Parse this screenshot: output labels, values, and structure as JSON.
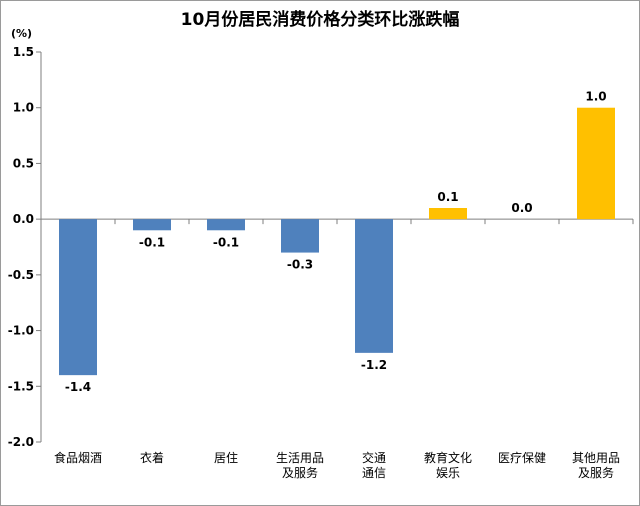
{
  "chart_data": {
    "type": "bar",
    "title": "10月份居民消费价格分类环比涨跌幅",
    "unit_label": "(%)",
    "categories": [
      [
        "食品烟酒"
      ],
      [
        "衣着"
      ],
      [
        "居住"
      ],
      [
        "生活用品",
        "及服务"
      ],
      [
        "交通",
        "通信"
      ],
      [
        "教育文化",
        "娱乐"
      ],
      [
        "医疗保健"
      ],
      [
        "其他用品",
        "及服务"
      ]
    ],
    "values": [
      -1.4,
      -0.1,
      -0.1,
      -0.3,
      -1.2,
      0.1,
      0.0,
      1.0
    ],
    "value_labels": [
      "-1.4",
      "-0.1",
      "-0.1",
      "-0.3",
      "-1.2",
      "0.1",
      "0.0",
      "1.0"
    ],
    "ylim": [
      -2.0,
      1.5
    ],
    "yticks": [
      1.5,
      1.0,
      0.5,
      0.0,
      -0.5,
      -1.0,
      -1.5,
      -2.0
    ],
    "ytick_labels": [
      "1.5",
      "1.0",
      "0.5",
      "0.0",
      "-0.5",
      "-1.0",
      "-1.5",
      "-2.0"
    ],
    "grid": false,
    "legend": "none",
    "colors": {
      "negative": "#4f81bd",
      "positive": "#ffc000"
    }
  }
}
